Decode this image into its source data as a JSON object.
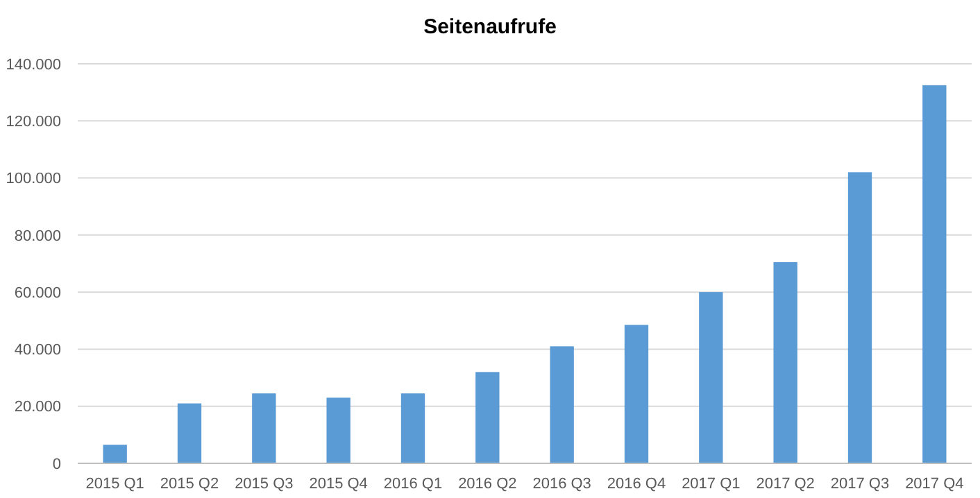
{
  "chart_data": {
    "type": "bar",
    "title": "Seitenaufrufe",
    "categories": [
      "2015 Q1",
      "2015 Q2",
      "2015 Q3",
      "2015 Q4",
      "2016 Q1",
      "2016 Q2",
      "2016 Q3",
      "2016 Q4",
      "2017 Q1",
      "2017 Q2",
      "2017 Q3",
      "2017 Q4"
    ],
    "values": [
      6500,
      21000,
      24500,
      23000,
      24500,
      32000,
      41000,
      48500,
      60000,
      70500,
      102000,
      132500
    ],
    "color": "#5b9bd5",
    "ylim": [
      0,
      140000
    ],
    "yticks": [
      {
        "value": 0,
        "label": "0"
      },
      {
        "value": 20000,
        "label": "20.000"
      },
      {
        "value": 40000,
        "label": "40.000"
      },
      {
        "value": 60000,
        "label": "60.000"
      },
      {
        "value": 80000,
        "label": "80.000"
      },
      {
        "value": 100000,
        "label": "100.000"
      },
      {
        "value": 120000,
        "label": "120.000"
      },
      {
        "value": 140000,
        "label": "140.000"
      }
    ],
    "grid": "y"
  }
}
